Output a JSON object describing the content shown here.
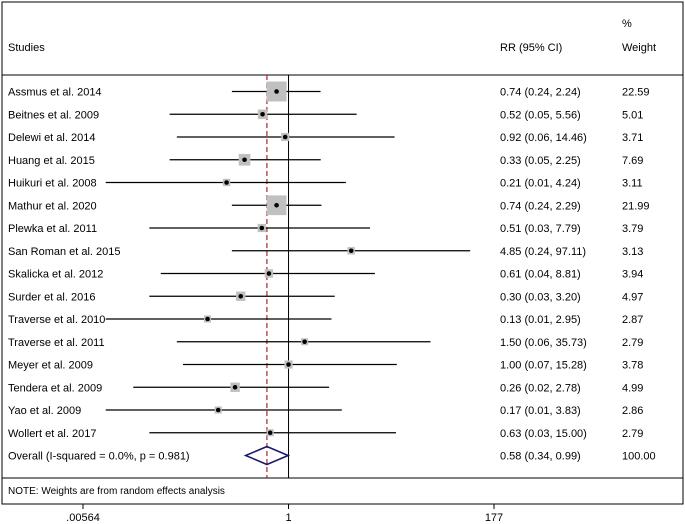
{
  "chart_data": {
    "type": "forest",
    "header": {
      "studies": "Studies",
      "rr": "RR (95% CI)",
      "weight_top": "%",
      "weight_bottom": "Weight"
    },
    "studies": [
      {
        "name": "Assmus et al. 2014",
        "rr": 0.74,
        "lo": 0.24,
        "hi": 2.24,
        "ci_text": "0.74 (0.24, 2.24)",
        "weight": 22.59,
        "weight_text": "22.59"
      },
      {
        "name": "Beitnes et al. 2009",
        "rr": 0.52,
        "lo": 0.05,
        "hi": 5.56,
        "ci_text": "0.52 (0.05, 5.56)",
        "weight": 5.01,
        "weight_text": "5.01"
      },
      {
        "name": "Delewi et al. 2014",
        "rr": 0.92,
        "lo": 0.06,
        "hi": 14.46,
        "ci_text": "0.92 (0.06, 14.46)",
        "weight": 3.71,
        "weight_text": "3.71"
      },
      {
        "name": "Huang et al. 2015",
        "rr": 0.33,
        "lo": 0.05,
        "hi": 2.25,
        "ci_text": "0.33 (0.05, 2.25)",
        "weight": 7.69,
        "weight_text": "7.69"
      },
      {
        "name": "Huikuri et al. 2008",
        "rr": 0.21,
        "lo": 0.01,
        "hi": 4.24,
        "ci_text": "0.21 (0.01, 4.24)",
        "weight": 3.11,
        "weight_text": "3.11"
      },
      {
        "name": "Mathur et al. 2020",
        "rr": 0.74,
        "lo": 0.24,
        "hi": 2.29,
        "ci_text": "0.74 (0.24, 2.29)",
        "weight": 21.99,
        "weight_text": "21.99"
      },
      {
        "name": "Plewka et al. 2011",
        "rr": 0.51,
        "lo": 0.03,
        "hi": 7.79,
        "ci_text": "0.51 (0.03, 7.79)",
        "weight": 3.79,
        "weight_text": "3.79"
      },
      {
        "name": "San Roman et al. 2015",
        "rr": 4.85,
        "lo": 0.24,
        "hi": 97.11,
        "ci_text": "4.85 (0.24, 97.11)",
        "weight": 3.13,
        "weight_text": "3.13"
      },
      {
        "name": "Skalicka et al. 2012",
        "rr": 0.61,
        "lo": 0.04,
        "hi": 8.81,
        "ci_text": "0.61 (0.04, 8.81)",
        "weight": 3.94,
        "weight_text": "3.94"
      },
      {
        "name": "Surder et al. 2016",
        "rr": 0.3,
        "lo": 0.03,
        "hi": 3.2,
        "ci_text": "0.30 (0.03, 3.20)",
        "weight": 4.97,
        "weight_text": "4.97"
      },
      {
        "name": "Traverse et al. 2010",
        "rr": 0.13,
        "lo": 0.01,
        "hi": 2.95,
        "ci_text": "0.13 (0.01, 2.95)",
        "weight": 2.87,
        "weight_text": "2.87"
      },
      {
        "name": "Traverse et al. 2011",
        "rr": 1.5,
        "lo": 0.06,
        "hi": 35.73,
        "ci_text": "1.50 (0.06, 35.73)",
        "weight": 2.79,
        "weight_text": "2.79"
      },
      {
        "name": "Meyer et al. 2009",
        "rr": 1.0,
        "lo": 0.07,
        "hi": 15.28,
        "ci_text": "1.00 (0.07, 15.28)",
        "weight": 3.78,
        "weight_text": "3.78"
      },
      {
        "name": "Tendera et al. 2009",
        "rr": 0.26,
        "lo": 0.02,
        "hi": 2.78,
        "ci_text": "0.26 (0.02, 2.78)",
        "weight": 4.99,
        "weight_text": "4.99"
      },
      {
        "name": "Yao et al. 2009",
        "rr": 0.17,
        "lo": 0.01,
        "hi": 3.83,
        "ci_text": "0.17 (0.01, 3.83)",
        "weight": 2.86,
        "weight_text": "2.86"
      },
      {
        "name": "Wollert et al. 2017",
        "rr": 0.63,
        "lo": 0.03,
        "hi": 15.0,
        "ci_text": "0.63 (0.03, 15.00)",
        "weight": 2.79,
        "weight_text": "2.79"
      }
    ],
    "overall": {
      "label": "Overall  (I-squared = 0.0%, p = 0.981)",
      "rr": 0.58,
      "lo": 0.34,
      "hi": 0.99,
      "ci_text": "0.58 (0.34, 0.99)",
      "weight_text": "100.00"
    },
    "note": "NOTE: Weights are from random effects analysis",
    "x_axis": {
      "scale": "log",
      "min": 0.00564,
      "max": 177,
      "ticks": [
        {
          "value": 0.00564,
          "label": ".00564"
        },
        {
          "value": 1,
          "label": "1"
        },
        {
          "value": 177,
          "label": "177"
        }
      ]
    },
    "null_line": 1,
    "colors": {
      "box": "#c0c0c0",
      "diamond": "#1a1a6e",
      "overall_line": "#a52a2a",
      "line": "#000000"
    }
  }
}
